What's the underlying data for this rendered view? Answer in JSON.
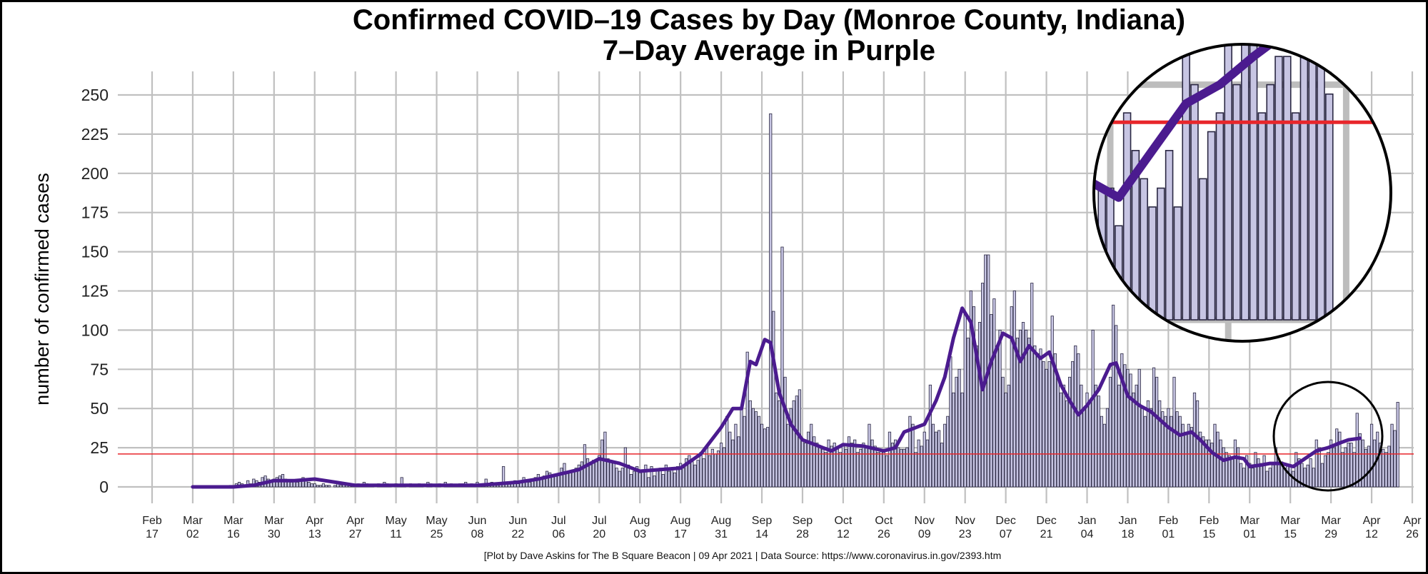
{
  "chart_data": {
    "type": "bar",
    "title": "Confirmed COVID–19 Cases by Day (Monroe County, Indiana)",
    "subtitle": "7–Day Average in Purple",
    "ylabel": "number of confirmed cases",
    "xlabel": "",
    "ylim": [
      0,
      250
    ],
    "yticks": [
      0,
      25,
      50,
      75,
      100,
      125,
      150,
      175,
      200,
      225,
      250
    ],
    "grid": true,
    "x_start_date": "2020-02-17",
    "x_end_date": "2021-04-26",
    "data_start_date": "2020-03-02",
    "x_ticks": [
      {
        "month": "Feb",
        "day": "17",
        "date": "2020-02-17"
      },
      {
        "month": "Mar",
        "day": "02",
        "date": "2020-03-02"
      },
      {
        "month": "Mar",
        "day": "16",
        "date": "2020-03-16"
      },
      {
        "month": "Mar",
        "day": "30",
        "date": "2020-03-30"
      },
      {
        "month": "Apr",
        "day": "13",
        "date": "2020-04-13"
      },
      {
        "month": "Apr",
        "day": "27",
        "date": "2020-04-27"
      },
      {
        "month": "May",
        "day": "11",
        "date": "2020-05-11"
      },
      {
        "month": "May",
        "day": "25",
        "date": "2020-05-25"
      },
      {
        "month": "Jun",
        "day": "08",
        "date": "2020-06-08"
      },
      {
        "month": "Jun",
        "day": "22",
        "date": "2020-06-22"
      },
      {
        "month": "Jul",
        "day": "06",
        "date": "2020-07-06"
      },
      {
        "month": "Jul",
        "day": "20",
        "date": "2020-07-20"
      },
      {
        "month": "Aug",
        "day": "03",
        "date": "2020-08-03"
      },
      {
        "month": "Aug",
        "day": "17",
        "date": "2020-08-17"
      },
      {
        "month": "Aug",
        "day": "31",
        "date": "2020-08-31"
      },
      {
        "month": "Sep",
        "day": "14",
        "date": "2020-09-14"
      },
      {
        "month": "Sep",
        "day": "28",
        "date": "2020-09-28"
      },
      {
        "month": "Oct",
        "day": "12",
        "date": "2020-10-12"
      },
      {
        "month": "Oct",
        "day": "26",
        "date": "2020-10-26"
      },
      {
        "month": "Nov",
        "day": "09",
        "date": "2020-11-09"
      },
      {
        "month": "Nov",
        "day": "23",
        "date": "2020-11-23"
      },
      {
        "month": "Dec",
        "day": "07",
        "date": "2020-12-07"
      },
      {
        "month": "Dec",
        "day": "21",
        "date": "2020-12-21"
      },
      {
        "month": "Jan",
        "day": "04",
        "date": "2021-01-04"
      },
      {
        "month": "Jan",
        "day": "18",
        "date": "2021-01-18"
      },
      {
        "month": "Feb",
        "day": "01",
        "date": "2021-02-01"
      },
      {
        "month": "Feb",
        "day": "15",
        "date": "2021-02-15"
      },
      {
        "month": "Mar",
        "day": "01",
        "date": "2021-03-01"
      },
      {
        "month": "Mar",
        "day": "15",
        "date": "2021-03-15"
      },
      {
        "month": "Mar",
        "day": "29",
        "date": "2021-03-29"
      },
      {
        "month": "Apr",
        "day": "12",
        "date": "2021-04-12"
      },
      {
        "month": "Apr",
        "day": "26",
        "date": "2021-04-26"
      }
    ],
    "daily_cases_by_week": [
      [
        0,
        0,
        0,
        0,
        0,
        0,
        0
      ],
      [
        0,
        0,
        0,
        0,
        0,
        0,
        1
      ],
      [
        1,
        2,
        3,
        2,
        1,
        4,
        2
      ],
      [
        5,
        4,
        3,
        6,
        7,
        5,
        4
      ],
      [
        5,
        6,
        7,
        8,
        5,
        4,
        3
      ],
      [
        4,
        3,
        5,
        6,
        4,
        3,
        2
      ],
      [
        2,
        1,
        1,
        2,
        1,
        1,
        0
      ],
      [
        1,
        2,
        1,
        2,
        1,
        2,
        1
      ],
      [
        1,
        2,
        1,
        3,
        2,
        1,
        1
      ],
      [
        0,
        2,
        1,
        3,
        2,
        1,
        0
      ],
      [
        2,
        1,
        6,
        1,
        0,
        2,
        1
      ],
      [
        1,
        2,
        1,
        0,
        3,
        2,
        0
      ],
      [
        1,
        2,
        0,
        3,
        1,
        2,
        1
      ],
      [
        1,
        2,
        2,
        3,
        1,
        2,
        1
      ],
      [
        3,
        2,
        1,
        5,
        1,
        3,
        2
      ],
      [
        1,
        2,
        13,
        3,
        2,
        3,
        4
      ],
      [
        2,
        3,
        6,
        4,
        3,
        5,
        6
      ],
      [
        8,
        6,
        7,
        10,
        9,
        7,
        8
      ],
      [
        8,
        12,
        15,
        10,
        9,
        11,
        12
      ],
      [
        14,
        16,
        27,
        18,
        15,
        17,
        16
      ],
      [
        20,
        30,
        35,
        18,
        17,
        15,
        12
      ],
      [
        10,
        12,
        25,
        14,
        8,
        10,
        13
      ],
      [
        9,
        11,
        14,
        6,
        13,
        7,
        10
      ],
      [
        12,
        8,
        14,
        10,
        11,
        9,
        13
      ],
      [
        15,
        12,
        18,
        20,
        16,
        14,
        17
      ],
      [
        22,
        18,
        25,
        20,
        24,
        21,
        23
      ],
      [
        28,
        25,
        45,
        35,
        30,
        40,
        32
      ],
      [
        50,
        45,
        86,
        55,
        50,
        48,
        45
      ],
      [
        40,
        37,
        38,
        238,
        112,
        60,
        55
      ],
      [
        153,
        70,
        40,
        50,
        55,
        58,
        62
      ],
      [
        30,
        28,
        35,
        40,
        32,
        28,
        25
      ],
      [
        24,
        22,
        30,
        26,
        28,
        24,
        22
      ],
      [
        26,
        24,
        32,
        28,
        30,
        22,
        24
      ],
      [
        28,
        25,
        40,
        30,
        26,
        22,
        24
      ],
      [
        22,
        20,
        35,
        28,
        30,
        25,
        24
      ],
      [
        24,
        25,
        45,
        40,
        22,
        30,
        26
      ],
      [
        35,
        30,
        65,
        40,
        35,
        36,
        28
      ],
      [
        40,
        45,
        83,
        60,
        70,
        75,
        60
      ],
      [
        110,
        95,
        125,
        115,
        90,
        105,
        130
      ],
      [
        148,
        148,
        110,
        120,
        90,
        100,
        70
      ],
      [
        60,
        65,
        115,
        125,
        95,
        100,
        105
      ],
      [
        100,
        95,
        130,
        90,
        85,
        88,
        80
      ],
      [
        75,
        80,
        109,
        85,
        70,
        60,
        65
      ],
      [
        55,
        70,
        80,
        90,
        85,
        65,
        50
      ],
      [
        60,
        55,
        100,
        65,
        58,
        45,
        40
      ],
      [
        50,
        70,
        116,
        103,
        65,
        85,
        78
      ],
      [
        75,
        72,
        60,
        65,
        75,
        50,
        45
      ],
      [
        55,
        50,
        76,
        70,
        55,
        48,
        45
      ],
      [
        50,
        45,
        70,
        48,
        45,
        40,
        35
      ],
      [
        40,
        38,
        60,
        55,
        35,
        32,
        30
      ],
      [
        30,
        28,
        40,
        35,
        30,
        25,
        22
      ],
      [
        20,
        18,
        30,
        25,
        15,
        12,
        20
      ],
      [
        15,
        12,
        22,
        18,
        15,
        20,
        10
      ],
      [
        12,
        14,
        25,
        18,
        16,
        12,
        14
      ],
      [
        14,
        10,
        22,
        18,
        15,
        12,
        14
      ],
      [
        18,
        12,
        30,
        25,
        15,
        20,
        22
      ],
      [
        30,
        25,
        37,
        35,
        22,
        25,
        28
      ],
      [
        28,
        22,
        47,
        34,
        30,
        24,
        26
      ],
      [
        40,
        30,
        35,
        28,
        24,
        22,
        26
      ],
      [
        40,
        36,
        54
      ]
    ],
    "seven_day_average": [
      {
        "date": "2020-03-02",
        "value": 0
      },
      {
        "date": "2020-03-16",
        "value": 0
      },
      {
        "date": "2020-03-23",
        "value": 1
      },
      {
        "date": "2020-03-30",
        "value": 4
      },
      {
        "date": "2020-04-06",
        "value": 4
      },
      {
        "date": "2020-04-13",
        "value": 5
      },
      {
        "date": "2020-04-20",
        "value": 3
      },
      {
        "date": "2020-04-27",
        "value": 1
      },
      {
        "date": "2020-05-04",
        "value": 1
      },
      {
        "date": "2020-05-11",
        "value": 1
      },
      {
        "date": "2020-05-18",
        "value": 1
      },
      {
        "date": "2020-05-25",
        "value": 1
      },
      {
        "date": "2020-06-08",
        "value": 1
      },
      {
        "date": "2020-06-15",
        "value": 2
      },
      {
        "date": "2020-06-22",
        "value": 3
      },
      {
        "date": "2020-06-29",
        "value": 5
      },
      {
        "date": "2020-07-06",
        "value": 8
      },
      {
        "date": "2020-07-13",
        "value": 11
      },
      {
        "date": "2020-07-20",
        "value": 18
      },
      {
        "date": "2020-07-27",
        "value": 15
      },
      {
        "date": "2020-08-03",
        "value": 10
      },
      {
        "date": "2020-08-10",
        "value": 11
      },
      {
        "date": "2020-08-17",
        "value": 12
      },
      {
        "date": "2020-08-24",
        "value": 21
      },
      {
        "date": "2020-08-31",
        "value": 38
      },
      {
        "date": "2020-09-04",
        "value": 50
      },
      {
        "date": "2020-09-07",
        "value": 50
      },
      {
        "date": "2020-09-10",
        "value": 80
      },
      {
        "date": "2020-09-12",
        "value": 78
      },
      {
        "date": "2020-09-15",
        "value": 94
      },
      {
        "date": "2020-09-17",
        "value": 92
      },
      {
        "date": "2020-09-20",
        "value": 60
      },
      {
        "date": "2020-09-24",
        "value": 40
      },
      {
        "date": "2020-09-28",
        "value": 30
      },
      {
        "date": "2020-10-05",
        "value": 25
      },
      {
        "date": "2020-10-08",
        "value": 23
      },
      {
        "date": "2020-10-12",
        "value": 27
      },
      {
        "date": "2020-10-19",
        "value": 26
      },
      {
        "date": "2020-10-26",
        "value": 23
      },
      {
        "date": "2020-10-30",
        "value": 25
      },
      {
        "date": "2020-11-02",
        "value": 35
      },
      {
        "date": "2020-11-09",
        "value": 40
      },
      {
        "date": "2020-11-13",
        "value": 55
      },
      {
        "date": "2020-11-16",
        "value": 70
      },
      {
        "date": "2020-11-19",
        "value": 95
      },
      {
        "date": "2020-11-22",
        "value": 114
      },
      {
        "date": "2020-11-25",
        "value": 105
      },
      {
        "date": "2020-11-29",
        "value": 62
      },
      {
        "date": "2020-12-02",
        "value": 80
      },
      {
        "date": "2020-12-06",
        "value": 98
      },
      {
        "date": "2020-12-09",
        "value": 95
      },
      {
        "date": "2020-12-12",
        "value": 80
      },
      {
        "date": "2020-12-15",
        "value": 90
      },
      {
        "date": "2020-12-19",
        "value": 82
      },
      {
        "date": "2020-12-22",
        "value": 86
      },
      {
        "date": "2020-12-26",
        "value": 65
      },
      {
        "date": "2020-12-29",
        "value": 55
      },
      {
        "date": "2021-01-01",
        "value": 46
      },
      {
        "date": "2021-01-04",
        "value": 52
      },
      {
        "date": "2021-01-08",
        "value": 62
      },
      {
        "date": "2021-01-12",
        "value": 78
      },
      {
        "date": "2021-01-14",
        "value": 79
      },
      {
        "date": "2021-01-18",
        "value": 58
      },
      {
        "date": "2021-01-22",
        "value": 52
      },
      {
        "date": "2021-01-26",
        "value": 48
      },
      {
        "date": "2021-02-01",
        "value": 38
      },
      {
        "date": "2021-02-05",
        "value": 33
      },
      {
        "date": "2021-02-09",
        "value": 35
      },
      {
        "date": "2021-02-12",
        "value": 30
      },
      {
        "date": "2021-02-16",
        "value": 22
      },
      {
        "date": "2021-02-20",
        "value": 17
      },
      {
        "date": "2021-02-24",
        "value": 19
      },
      {
        "date": "2021-02-27",
        "value": 18
      },
      {
        "date": "2021-03-01",
        "value": 13
      },
      {
        "date": "2021-03-05",
        "value": 14
      },
      {
        "date": "2021-03-08",
        "value": 15
      },
      {
        "date": "2021-03-12",
        "value": 15
      },
      {
        "date": "2021-03-16",
        "value": 13
      },
      {
        "date": "2021-03-20",
        "value": 18
      },
      {
        "date": "2021-03-24",
        "value": 23
      },
      {
        "date": "2021-03-28",
        "value": 25
      },
      {
        "date": "2021-04-01",
        "value": 28
      },
      {
        "date": "2021-04-04",
        "value": 30
      },
      {
        "date": "2021-04-08",
        "value": 31
      }
    ],
    "reference_line": {
      "value": 21,
      "color": "#e8262b"
    },
    "colors": {
      "bar_fill": "#c7c5e3",
      "bar_stroke": "#2a2742",
      "average_line": "#4b1b8f",
      "grid": "#c0c0c0"
    },
    "caption": "[Plot by Dave Askins for The B Square Beacon | 09 Apr 2021 | Data Source: https://www.coronavirus.in.gov/2393.htm"
  }
}
